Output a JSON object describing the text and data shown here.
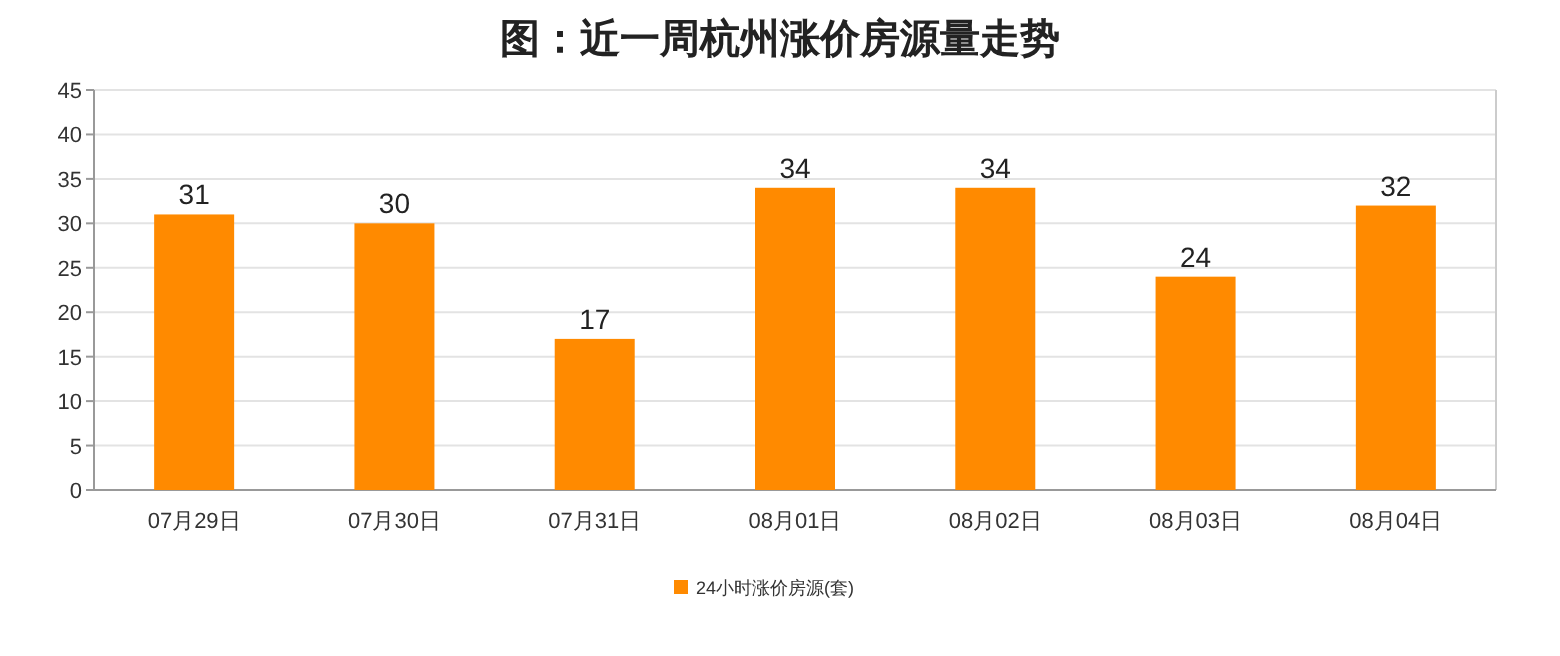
{
  "chart_data": {
    "type": "bar",
    "title": "图：近一周杭州涨价房源量走势",
    "categories": [
      "07月29日",
      "07月30日",
      "07月31日",
      "08月01日",
      "08月02日",
      "08月03日",
      "08月04日"
    ],
    "series": [
      {
        "name": "24小时涨价房源(套)",
        "color": "#ff8a00",
        "values": [
          31,
          30,
          17,
          34,
          34,
          24,
          32
        ]
      }
    ],
    "ylim": [
      0,
      45
    ],
    "yticks": [
      0,
      5,
      10,
      15,
      20,
      25,
      30,
      35,
      40,
      45
    ],
    "grid": "y",
    "data_labels": true,
    "legend": "bottom"
  }
}
